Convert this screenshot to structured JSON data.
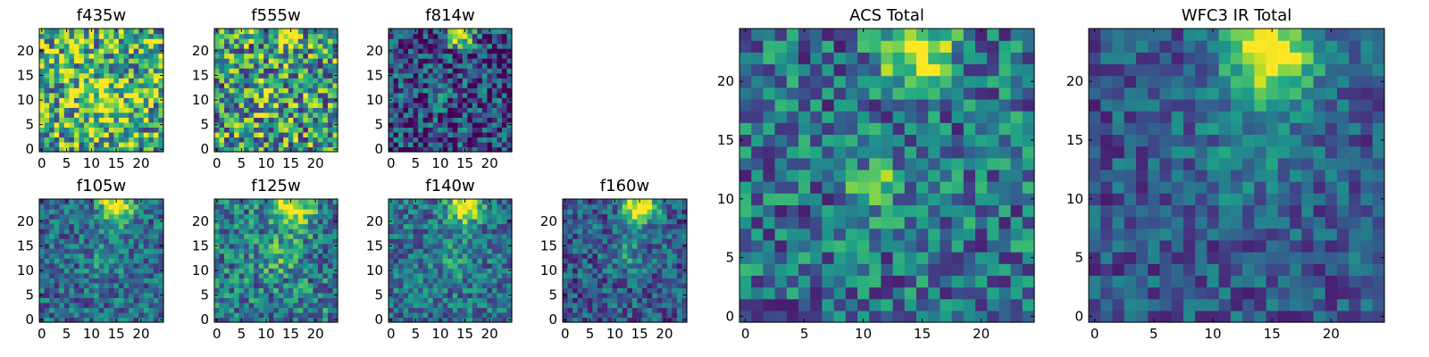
{
  "chart_data": [
    {
      "type": "heatmap",
      "title": "f435w",
      "xticks": [
        "0",
        "5",
        "10",
        "15",
        "20"
      ],
      "yticks": [
        "0",
        "5",
        "10",
        "15",
        "20"
      ],
      "grid_size": 25,
      "colormap": "viridis",
      "noise": 0.45,
      "base": 0.62,
      "seed": 11,
      "blobs": [
        {
          "x": 12,
          "y": 10,
          "amp": 0.25,
          "sigma": 4.0
        }
      ]
    },
    {
      "type": "heatmap",
      "title": "f555w",
      "xticks": [
        "0",
        "5",
        "10",
        "15",
        "20"
      ],
      "yticks": [
        "0",
        "5",
        "10",
        "15",
        "20"
      ],
      "grid_size": 25,
      "colormap": "viridis",
      "noise": 0.45,
      "base": 0.55,
      "seed": 23,
      "blobs": [
        {
          "x": 14,
          "y": 23,
          "amp": 0.35,
          "sigma": 2.0
        },
        {
          "x": 10,
          "y": 11,
          "amp": 0.25,
          "sigma": 2.0
        }
      ]
    },
    {
      "type": "heatmap",
      "title": "f814w",
      "xticks": [
        "0",
        "5",
        "10",
        "15",
        "20"
      ],
      "yticks": [
        "0",
        "5",
        "10",
        "15",
        "20"
      ],
      "grid_size": 25,
      "colormap": "viridis",
      "noise": 0.35,
      "base": 0.22,
      "seed": 37,
      "blobs": [
        {
          "x": 14,
          "y": 23,
          "amp": 0.8,
          "sigma": 1.8
        },
        {
          "x": 10,
          "y": 11,
          "amp": 0.35,
          "sigma": 1.3
        }
      ]
    },
    {
      "type": "heatmap",
      "title": "f105w",
      "xticks": [
        "0",
        "5",
        "10",
        "15",
        "20"
      ],
      "yticks": [
        "0",
        "5",
        "10",
        "15",
        "20"
      ],
      "grid_size": 25,
      "colormap": "viridis",
      "noise": 0.25,
      "base": 0.35,
      "seed": 41,
      "blobs": [
        {
          "x": 15,
          "y": 23,
          "amp": 0.8,
          "sigma": 2.2
        },
        {
          "x": 13,
          "y": 13,
          "amp": 0.15,
          "sigma": 3.0
        }
      ]
    },
    {
      "type": "heatmap",
      "title": "f125w",
      "xticks": [
        "0",
        "5",
        "10",
        "15",
        "20"
      ],
      "yticks": [
        "0",
        "5",
        "10",
        "15",
        "20"
      ],
      "grid_size": 25,
      "colormap": "viridis",
      "noise": 0.3,
      "base": 0.42,
      "seed": 53,
      "blobs": [
        {
          "x": 15,
          "y": 23,
          "amp": 0.65,
          "sigma": 2.8
        },
        {
          "x": 13,
          "y": 13,
          "amp": 0.2,
          "sigma": 3.0
        }
      ]
    },
    {
      "type": "heatmap",
      "title": "f140w",
      "xticks": [
        "0",
        "5",
        "10",
        "15",
        "20"
      ],
      "yticks": [
        "0",
        "5",
        "10",
        "15",
        "20"
      ],
      "grid_size": 25,
      "colormap": "viridis",
      "noise": 0.25,
      "base": 0.38,
      "seed": 67,
      "blobs": [
        {
          "x": 15,
          "y": 23,
          "amp": 0.75,
          "sigma": 2.2
        },
        {
          "x": 13,
          "y": 13,
          "amp": 0.15,
          "sigma": 3.0
        }
      ]
    },
    {
      "type": "heatmap",
      "title": "f160w",
      "xticks": [
        "0",
        "5",
        "10",
        "15",
        "20"
      ],
      "yticks": [
        "0",
        "5",
        "10",
        "15",
        "20"
      ],
      "grid_size": 25,
      "colormap": "viridis",
      "noise": 0.25,
      "base": 0.3,
      "seed": 79,
      "blobs": [
        {
          "x": 15,
          "y": 23,
          "amp": 0.8,
          "sigma": 2.3
        },
        {
          "x": 13,
          "y": 13,
          "amp": 0.18,
          "sigma": 3.0
        }
      ]
    },
    {
      "type": "heatmap",
      "title": "ACS Total",
      "xticks": [
        "0",
        "5",
        "10",
        "15",
        "20"
      ],
      "yticks": [
        "0",
        "5",
        "10",
        "15",
        "20"
      ],
      "grid_size": 25,
      "colormap": "viridis",
      "noise": 0.3,
      "base": 0.38,
      "seed": 97,
      "blobs": [
        {
          "x": 14.5,
          "y": 22.5,
          "amp": 0.7,
          "sigma": 2.0
        },
        {
          "x": 11,
          "y": 11,
          "amp": 0.5,
          "sigma": 1.3
        }
      ]
    },
    {
      "type": "heatmap",
      "title": "WFC3 IR Total",
      "xticks": [
        "0",
        "5",
        "10",
        "15",
        "20"
      ],
      "yticks": [
        "0",
        "5",
        "10",
        "15",
        "20"
      ],
      "grid_size": 25,
      "colormap": "viridis",
      "noise": 0.2,
      "base": 0.28,
      "seed": 113,
      "blobs": [
        {
          "x": 15,
          "y": 22.5,
          "amp": 0.75,
          "sigma": 2.8
        },
        {
          "x": 13,
          "y": 14,
          "amp": 0.15,
          "sigma": 3.5
        }
      ]
    }
  ]
}
